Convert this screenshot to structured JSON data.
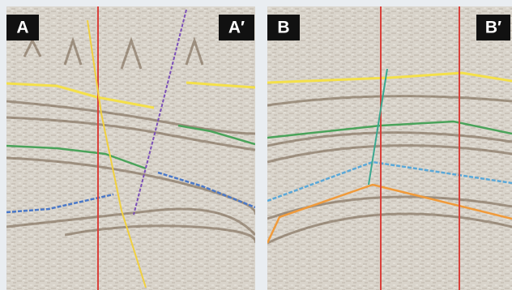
{
  "panels": [
    {
      "left_label": "A",
      "right_label": "A′"
    },
    {
      "left_label": "B",
      "right_label": "B′"
    }
  ]
}
